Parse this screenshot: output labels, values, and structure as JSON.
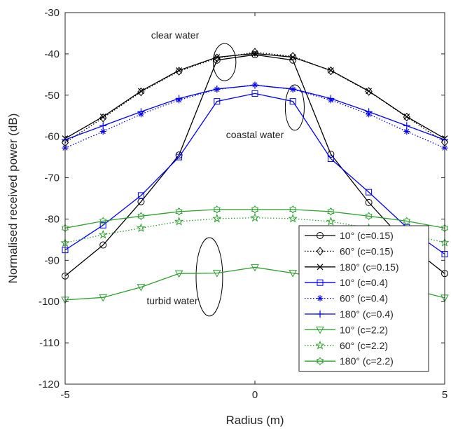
{
  "chart_data": {
    "type": "line",
    "title": "",
    "xlabel": "Radius (m)",
    "ylabel": "Normalised received power (dB)",
    "xlim": [
      -5,
      5
    ],
    "ylim": [
      -120,
      -30
    ],
    "xticks": [
      "-5",
      "0",
      "5"
    ],
    "yticks": [
      "-30",
      "-40",
      "-50",
      "-60",
      "-70",
      "-80",
      "-90",
      "-100",
      "-110",
      "-120"
    ],
    "grid": false,
    "legend_position": "bottom-right",
    "x": [
      -5,
      -4,
      -3,
      -2,
      -1,
      0,
      1,
      2,
      3,
      4,
      5
    ],
    "series": [
      {
        "name": "10° (c=0.15)",
        "color": "#000000",
        "dash": "solid",
        "marker": "circle",
        "values": [
          -93.8,
          -86.3,
          -75.8,
          -64.5,
          -41.5,
          -40.2,
          -41.5,
          -64.3,
          -76.0,
          -86.0,
          -93.2
        ]
      },
      {
        "name": "60° (c=0.15)",
        "color": "#000000",
        "dash": "dotted",
        "marker": "diamond",
        "values": [
          -61.5,
          -55.5,
          -49.2,
          -44.2,
          -41.0,
          -39.6,
          -40.6,
          -44.1,
          -49.1,
          -55.3,
          -61.4
        ]
      },
      {
        "name": "180° (c=0.15)",
        "color": "#000000",
        "dash": "solid",
        "marker": "x",
        "values": [
          -60.5,
          -55.2,
          -49.0,
          -44.0,
          -40.8,
          -39.9,
          -40.8,
          -44.0,
          -49.0,
          -55.2,
          -60.5
        ]
      },
      {
        "name": "10° (c=0.4)",
        "color": "#0000ff",
        "dash": "solid",
        "marker": "square",
        "values": [
          -87.5,
          -81.5,
          -74.3,
          -65.0,
          -51.5,
          -49.6,
          -51.5,
          -65.4,
          -73.5,
          -82.0,
          -88.5
        ]
      },
      {
        "name": "60° (c=0.4)",
        "color": "#0000ff",
        "dash": "dotted",
        "marker": "asterisk",
        "values": [
          -62.8,
          -58.8,
          -54.6,
          -51.2,
          -48.6,
          -47.5,
          -48.6,
          -51.2,
          -54.6,
          -58.8,
          -62.8
        ]
      },
      {
        "name": "180° (c=0.4)",
        "color": "#0000ff",
        "dash": "solid",
        "marker": "plus",
        "values": [
          -60.8,
          -57.4,
          -54.0,
          -50.8,
          -48.5,
          -47.6,
          -48.5,
          -50.8,
          -54.0,
          -57.4,
          -60.8
        ]
      },
      {
        "name": "10° (c=2.2)",
        "color": "#2ca02c",
        "dash": "solid",
        "marker": "triangle-down",
        "values": [
          -99.6,
          -99.0,
          -96.5,
          -93.2,
          -93.1,
          -91.7,
          -93.1,
          -94.5,
          -96.5,
          -96.8,
          -99.1
        ]
      },
      {
        "name": "60° (c=2.2)",
        "color": "#2ca02c",
        "dash": "dotted",
        "marker": "pentagram",
        "values": [
          -85.8,
          -83.8,
          -82.2,
          -80.6,
          -79.9,
          -79.7,
          -79.9,
          -80.6,
          -82.2,
          -83.6,
          -85.7
        ]
      },
      {
        "name": "180° (c=2.2)",
        "color": "#2ca02c",
        "dash": "solid",
        "marker": "hexagram",
        "values": [
          -82.2,
          -80.5,
          -79.3,
          -78.2,
          -77.7,
          -77.7,
          -77.7,
          -78.2,
          -79.3,
          -80.5,
          -82.2
        ]
      }
    ],
    "annotations": [
      {
        "text": "clear water",
        "ellipse_cx": -0.8,
        "ellipse_cy": -42.0,
        "ellipse_rx": 0.3,
        "ellipse_ry": 4.5
      },
      {
        "text": "coastal water",
        "ellipse_cx": 1.05,
        "ellipse_cy": -53.0,
        "ellipse_rx": 0.25,
        "ellipse_ry": 5.5
      },
      {
        "text": "turbid water",
        "ellipse_cx": -1.2,
        "ellipse_cy": -94.0,
        "ellipse_rx": 0.35,
        "ellipse_ry": 9.5
      }
    ]
  }
}
